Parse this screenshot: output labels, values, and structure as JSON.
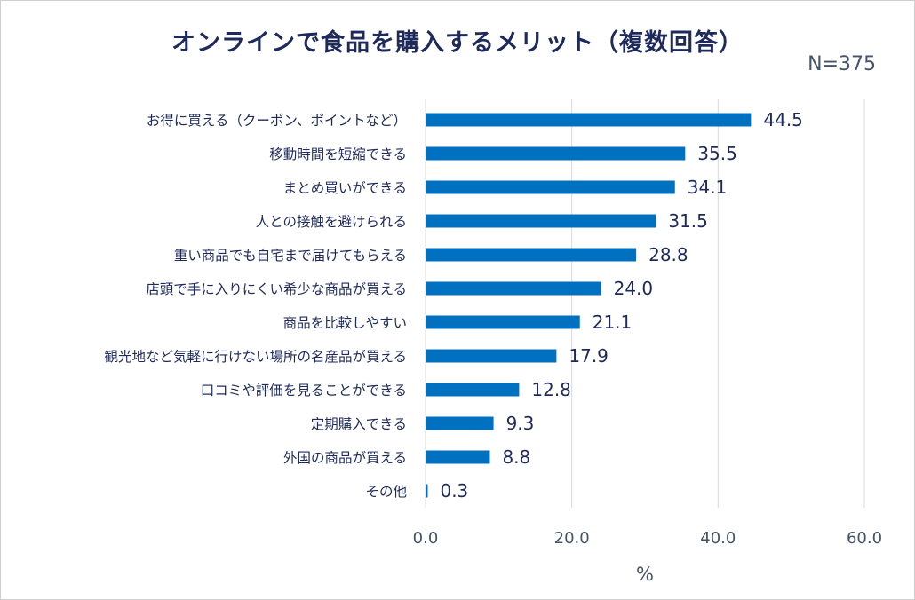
{
  "chart_data": {
    "type": "bar",
    "orientation": "horizontal",
    "title": "オンラインで食品を購入するメリット（複数回答）",
    "sample_size": "N=375",
    "categories": [
      "お得に買える（クーポン、ポイントなど）",
      "移動時間を短縮できる",
      "まとめ買いができる",
      "人との接触を避けられる",
      "重い商品でも自宅まで届けてもらえる",
      "店頭で手に入りにくい希少な商品が買える",
      "商品を比較しやすい",
      "観光地など気軽に行けない場所の名産品が買える",
      "口コミや評価を見ることができる",
      "定期購入できる",
      "外国の商品が買える",
      "その他"
    ],
    "values": [
      44.5,
      35.5,
      34.1,
      31.5,
      28.8,
      24.0,
      21.1,
      17.9,
      12.8,
      9.3,
      8.8,
      0.3
    ],
    "value_labels": [
      "44.5",
      "35.5",
      "34.1",
      "31.5",
      "28.8",
      "24.0",
      "21.1",
      "17.9",
      "12.8",
      "9.3",
      "8.8",
      "0.3"
    ],
    "xlabel": "%",
    "xlim": [
      0,
      60
    ],
    "xticks": [
      0,
      20,
      40,
      60
    ],
    "xtick_labels": [
      "0.0",
      "20.0",
      "40.0",
      "60.0"
    ],
    "grid": "vertical",
    "bar_color": "#0070C0"
  }
}
